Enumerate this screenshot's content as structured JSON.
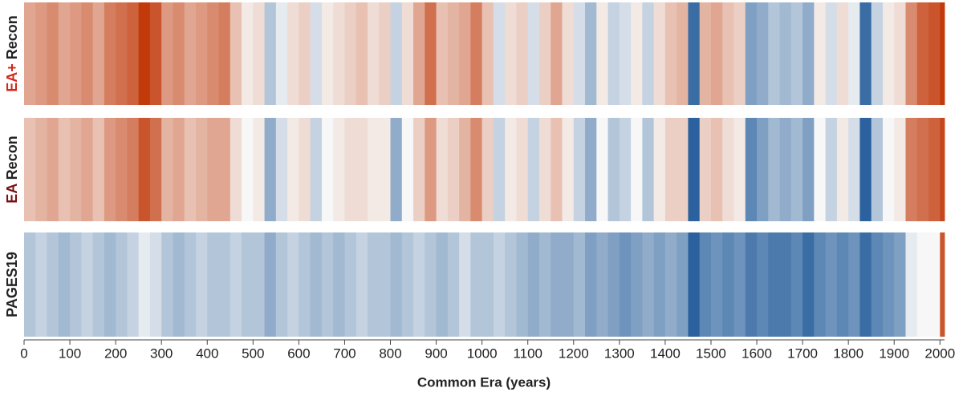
{
  "chart_data": {
    "type": "stripes",
    "xlabel": "Common Era (years)",
    "xlim": [
      0,
      2010
    ],
    "xticks": [
      0,
      100,
      200,
      300,
      400,
      500,
      600,
      700,
      800,
      900,
      1000,
      1100,
      1200,
      1300,
      1400,
      1500,
      1600,
      1700,
      1800,
      1900,
      2000
    ],
    "color_scale": [
      "#08488f",
      "#f7f7f7",
      "#c23a0a"
    ],
    "bins": [
      0,
      25,
      50,
      75,
      100,
      125,
      150,
      175,
      200,
      225,
      250,
      275,
      300,
      325,
      350,
      375,
      400,
      425,
      450,
      475,
      500,
      525,
      550,
      575,
      600,
      625,
      650,
      675,
      700,
      725,
      750,
      775,
      800,
      825,
      850,
      875,
      900,
      925,
      950,
      975,
      1000,
      1025,
      1050,
      1075,
      1100,
      1125,
      1150,
      1175,
      1200,
      1225,
      1250,
      1275,
      1300,
      1325,
      1350,
      1375,
      1400,
      1425,
      1450,
      1475,
      1500,
      1525,
      1550,
      1575,
      1600,
      1625,
      1650,
      1675,
      1700,
      1725,
      1750,
      1775,
      1800,
      1825,
      1850,
      1875,
      1900,
      1925,
      1950,
      1975,
      2000,
      2010
    ],
    "series": [
      {
        "name": [
          "EA+",
          "Recon"
        ],
        "name_colors": [
          "#d0281c",
          "#222222"
        ],
        "values": [
          0.3,
          0.35,
          0.4,
          0.3,
          0.35,
          0.4,
          0.3,
          0.45,
          0.5,
          0.55,
          0.7,
          0.6,
          0.35,
          0.4,
          0.3,
          0.35,
          0.4,
          0.45,
          0.2,
          0.05,
          0.1,
          -0.2,
          -0.05,
          0.1,
          0.15,
          -0.1,
          0.05,
          0.1,
          0.15,
          0.2,
          0.1,
          0.15,
          -0.15,
          0.1,
          0.3,
          0.5,
          0.2,
          0.25,
          0.3,
          0.45,
          0.2,
          -0.1,
          0.1,
          0.15,
          -0.1,
          0.15,
          0.3,
          0.1,
          -0.1,
          -0.25,
          0.05,
          -0.15,
          -0.1,
          0.05,
          -0.15,
          0.1,
          0.2,
          0.25,
          -0.55,
          0.25,
          0.3,
          0.2,
          0.15,
          -0.35,
          -0.3,
          -0.2,
          -0.25,
          -0.2,
          -0.3,
          0.05,
          -0.1,
          0.1,
          -0.05,
          -0.55,
          -0.15,
          0.05,
          0.1,
          0.4,
          0.55,
          0.6,
          0.7
        ]
      },
      {
        "name": [
          "EA",
          "Recon"
        ],
        "name_colors": [
          "#7a1010",
          "#222222"
        ],
        "values": [
          0.2,
          0.25,
          0.3,
          0.2,
          0.25,
          0.3,
          0.2,
          0.35,
          0.4,
          0.45,
          0.6,
          0.5,
          0.25,
          0.3,
          0.2,
          0.25,
          0.3,
          0.3,
          0.1,
          0.0,
          0.05,
          -0.3,
          -0.1,
          0.05,
          0.1,
          -0.15,
          0.0,
          0.05,
          0.1,
          0.1,
          0.05,
          0.05,
          -0.3,
          0.0,
          0.15,
          0.35,
          0.1,
          0.15,
          0.25,
          0.4,
          0.15,
          -0.15,
          0.05,
          0.1,
          -0.15,
          0.1,
          0.2,
          0.05,
          -0.15,
          -0.3,
          0.0,
          -0.2,
          -0.15,
          0.0,
          -0.2,
          0.05,
          0.15,
          0.15,
          -0.6,
          0.15,
          0.2,
          0.1,
          0.05,
          -0.45,
          -0.35,
          -0.25,
          -0.3,
          -0.25,
          -0.35,
          0.0,
          -0.15,
          0.05,
          -0.1,
          -0.6,
          -0.2,
          0.0,
          0.05,
          0.45,
          0.5,
          0.55,
          0.65
        ]
      },
      {
        "name": [
          "PAGES19"
        ],
        "name_colors": [
          "#222222"
        ],
        "values": [
          -0.2,
          -0.15,
          -0.2,
          -0.25,
          -0.2,
          -0.15,
          -0.2,
          -0.25,
          -0.2,
          -0.15,
          -0.05,
          -0.1,
          -0.2,
          -0.25,
          -0.2,
          -0.15,
          -0.2,
          -0.2,
          -0.15,
          -0.2,
          -0.2,
          -0.3,
          -0.2,
          -0.15,
          -0.2,
          -0.25,
          -0.2,
          -0.25,
          -0.2,
          -0.15,
          -0.2,
          -0.2,
          -0.25,
          -0.2,
          -0.15,
          -0.2,
          -0.25,
          -0.2,
          -0.1,
          -0.2,
          -0.2,
          -0.15,
          -0.2,
          -0.25,
          -0.3,
          -0.25,
          -0.3,
          -0.3,
          -0.25,
          -0.35,
          -0.3,
          -0.35,
          -0.4,
          -0.35,
          -0.3,
          -0.35,
          -0.3,
          -0.35,
          -0.6,
          -0.45,
          -0.4,
          -0.45,
          -0.4,
          -0.5,
          -0.45,
          -0.5,
          -0.5,
          -0.45,
          -0.55,
          -0.45,
          -0.4,
          -0.45,
          -0.4,
          -0.55,
          -0.45,
          -0.4,
          -0.35,
          -0.05,
          0.0,
          0.0,
          0.6
        ]
      }
    ]
  }
}
